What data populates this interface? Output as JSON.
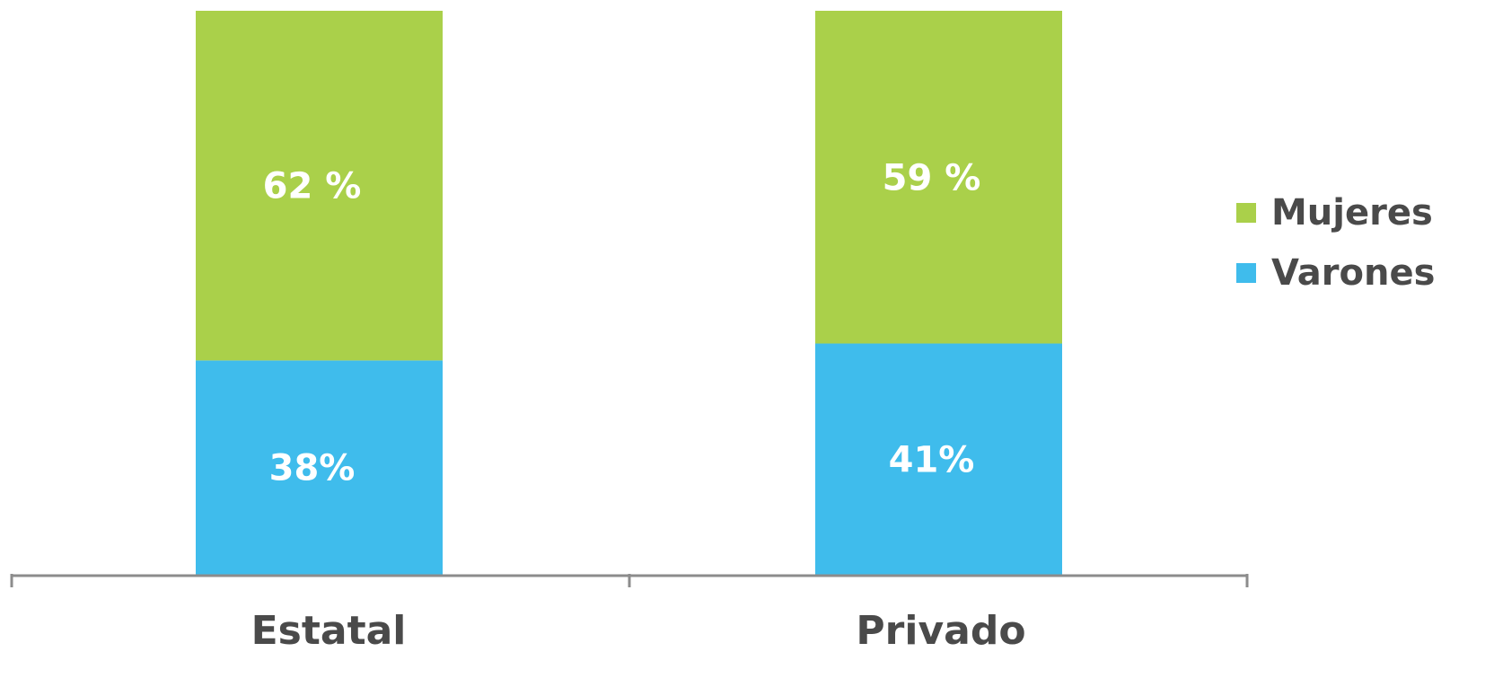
{
  "chart_data": {
    "type": "bar",
    "stacked": true,
    "percent_stacked": true,
    "categories": [
      "Estatal",
      "Privado"
    ],
    "series": [
      {
        "name": "Varones",
        "values": [
          38,
          41
        ],
        "labels": [
          "38%",
          "41%"
        ],
        "color": "#3fbcec"
      },
      {
        "name": "Mujeres",
        "values": [
          62,
          59
        ],
        "labels": [
          "62 %",
          "59 %"
        ],
        "color": "#aad04a"
      }
    ],
    "ylim": [
      0,
      100
    ],
    "grid": false,
    "legend_position": "right",
    "axis_color": "#8c8c8c",
    "text_color": "#4a4a4a"
  },
  "legend": {
    "items": [
      {
        "label": "Mujeres",
        "color": "#aad04a"
      },
      {
        "label": "Varones",
        "color": "#3fbcec"
      }
    ]
  }
}
